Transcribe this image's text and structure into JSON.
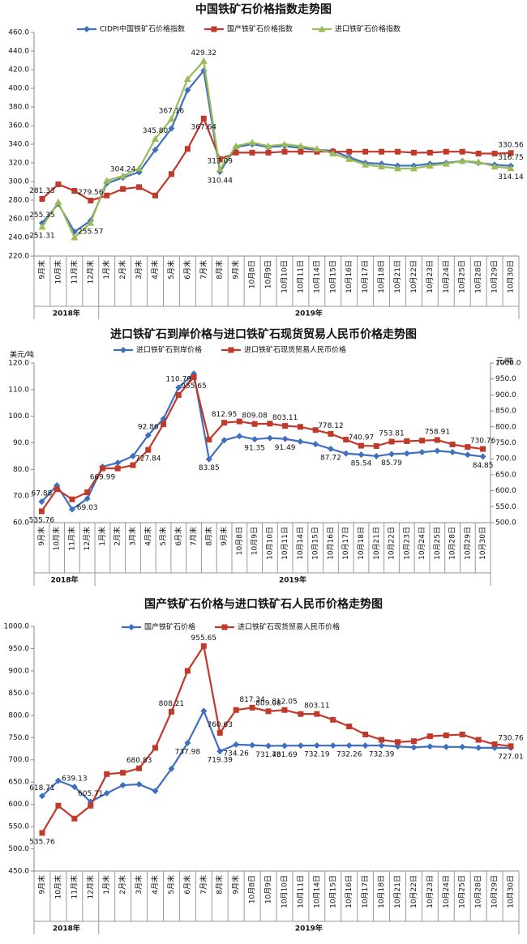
{
  "chart_data": [
    {
      "type": "line",
      "title": "中国铁矿石价格指数走势图",
      "categories": [
        "9月末",
        "10月末",
        "11月末",
        "12月末",
        "1月末",
        "2月末",
        "3月末",
        "4月末",
        "5月末",
        "6月末",
        "7月末",
        "8月末",
        "9月末",
        "10月8日",
        "10月9日",
        "10月10日",
        "10月11日",
        "10月14日",
        "10月15日",
        "10月16日",
        "10月17日",
        "10月18日",
        "10月21日",
        "10月22日",
        "10月23日",
        "10月24日",
        "10月25日",
        "10月28日",
        "10月29日",
        "10月30日"
      ],
      "category_years": [
        "2018年",
        "2018年",
        "2018年",
        "2018年",
        "2019年",
        "2019年",
        "2019年",
        "2019年",
        "2019年",
        "2019年",
        "2019年",
        "2019年",
        "2019年",
        "2019年",
        "2019年",
        "2019年",
        "2019年",
        "2019年",
        "2019年",
        "2019年",
        "2019年",
        "2019年",
        "2019年",
        "2019年",
        "2019年",
        "2019年",
        "2019年",
        "2019年",
        "2019年",
        "2019年"
      ],
      "ylim": [
        220,
        460
      ],
      "yticks": [
        {
          "value": 220,
          "label": "220.0"
        },
        {
          "value": 240,
          "label": "240.0"
        },
        {
          "value": 260,
          "label": "260.0"
        },
        {
          "value": 280,
          "label": "280.0"
        },
        {
          "value": 300,
          "label": "300.0"
        },
        {
          "value": 320,
          "label": "320.0"
        },
        {
          "value": 340,
          "label": "340.0"
        },
        {
          "value": 360,
          "label": "360.0"
        },
        {
          "value": 380,
          "label": "380.0"
        },
        {
          "value": 400,
          "label": "400.0"
        },
        {
          "value": 420,
          "label": "420.0"
        },
        {
          "value": 440,
          "label": "440.0"
        },
        {
          "value": 460,
          "label": "460.0"
        }
      ],
      "series": [
        {
          "name": "CIDPI中国铁矿石价格指数",
          "color": "#3f6fbf",
          "marker": "diamond",
          "values": [
            255.35,
            276,
            246,
            258,
            298,
            304.24,
            310,
            334,
            357,
            398,
            419,
            310.44,
            337,
            340,
            337,
            338,
            336,
            334,
            333,
            326,
            320,
            319,
            317,
            317,
            319,
            320,
            322,
            320,
            318,
            316.75
          ],
          "value_labels": [
            "255.35",
            null,
            null,
            null,
            null,
            "304.24",
            null,
            null,
            null,
            null,
            null,
            "310.44",
            null,
            null,
            null,
            null,
            null,
            null,
            null,
            null,
            null,
            null,
            null,
            null,
            null,
            null,
            null,
            null,
            null,
            "316.75"
          ]
        },
        {
          "name": "国产铁矿石价格指数",
          "color": "#c0392b",
          "marker": "square",
          "values": [
            281.33,
            297,
            290,
            279.56,
            285,
            292,
            294,
            285,
            308,
            335,
            367.64,
            324,
            331,
            331,
            331,
            332,
            332,
            332,
            332,
            332,
            332,
            332,
            332,
            331,
            331,
            332,
            332,
            330,
            330,
            330.56
          ],
          "value_labels": [
            "281.33",
            null,
            null,
            "279.56",
            null,
            null,
            null,
            null,
            null,
            null,
            "367.64",
            null,
            null,
            null,
            null,
            null,
            null,
            null,
            null,
            null,
            null,
            null,
            null,
            null,
            null,
            null,
            null,
            null,
            null,
            "330.56"
          ]
        },
        {
          "name": "进口铁矿石价格指数",
          "color": "#9bbb59",
          "marker": "triangle",
          "values": [
            251.31,
            278,
            240,
            255.57,
            301,
            306,
            314,
            345.8,
            367.16,
            410,
            429.32,
            313.09,
            338,
            342,
            338,
            340,
            338,
            335,
            330,
            324,
            318,
            316,
            314,
            314,
            317,
            319,
            322,
            321,
            316,
            314.14
          ],
          "value_labels": [
            "251.31",
            null,
            null,
            "255.57",
            null,
            null,
            null,
            "345.80",
            "367.16",
            null,
            "429.32",
            "313.09",
            null,
            null,
            null,
            null,
            null,
            null,
            null,
            null,
            null,
            null,
            null,
            null,
            null,
            null,
            null,
            null,
            null,
            "314.14"
          ]
        }
      ]
    },
    {
      "type": "line",
      "title": "进口铁矿石到岸价格与进口铁矿石现货贸易人民币价格走势图",
      "ylabel": "美元/吨",
      "y2label": "元/吨",
      "categories": [
        "9月末",
        "10月末",
        "11月末",
        "12月末",
        "1月末",
        "2月末",
        "3月末",
        "4月末",
        "5月末",
        "6月末",
        "7月末",
        "8月末",
        "9月末",
        "10月8日",
        "10月9日",
        "10月10日",
        "10月11日",
        "10月14日",
        "10月15日",
        "10月16日",
        "10月17日",
        "10月18日",
        "10月21日",
        "10月22日",
        "10月23日",
        "10月24日",
        "10月25日",
        "10月28日",
        "10月29日",
        "10月30日"
      ],
      "category_years": [
        "2018年",
        "2018年",
        "2018年",
        "2018年",
        "2019年",
        "2019年",
        "2019年",
        "2019年",
        "2019年",
        "2019年",
        "2019年",
        "2019年",
        "2019年",
        "2019年",
        "2019年",
        "2019年",
        "2019年",
        "2019年",
        "2019年",
        "2019年",
        "2019年",
        "2019年",
        "2019年",
        "2019年",
        "2019年",
        "2019年",
        "2019年",
        "2019年",
        "2019年",
        "2019年"
      ],
      "ylim": [
        60,
        120
      ],
      "yticks": [
        {
          "value": 60,
          "label": "60.0"
        },
        {
          "value": 70,
          "label": "70.0"
        },
        {
          "value": 80,
          "label": "80.0"
        },
        {
          "value": 90,
          "label": "90.0"
        },
        {
          "value": 100,
          "label": "100.0"
        },
        {
          "value": 110,
          "label": "110.0"
        },
        {
          "value": 120,
          "label": "120.0"
        }
      ],
      "y2lim": [
        500,
        1000
      ],
      "y2ticks": [
        {
          "value": 500,
          "label": "500.0"
        },
        {
          "value": 550,
          "label": "550.0"
        },
        {
          "value": 600,
          "label": "600.0"
        },
        {
          "value": 650,
          "label": "650.0"
        },
        {
          "value": 700,
          "label": "700.0"
        },
        {
          "value": 750,
          "label": "750.0"
        },
        {
          "value": 800,
          "label": "800.0"
        },
        {
          "value": 850,
          "label": "850.0"
        },
        {
          "value": 900,
          "label": "900.0"
        },
        {
          "value": 950,
          "label": "950.0"
        },
        {
          "value": 1000,
          "label": "1000.0"
        }
      ],
      "series": [
        {
          "name": "进口铁矿石到岸价格",
          "color": "#3f6fbf",
          "marker": "diamond",
          "values": [
            67.88,
            74,
            65,
            69.03,
            81,
            82.5,
            85,
            92.86,
            99,
            110.79,
            116,
            83.85,
            91,
            92.5,
            91.35,
            91.8,
            91.49,
            90.5,
            89.5,
            87.72,
            86,
            85.54,
            85,
            85.79,
            86,
            86.5,
            87,
            86.5,
            85.5,
            84.85
          ],
          "value_labels": [
            "67.88",
            null,
            null,
            "69.03",
            null,
            null,
            null,
            "92.86",
            null,
            "110.79",
            null,
            "83.85",
            null,
            null,
            "91.35",
            null,
            "91.49",
            null,
            null,
            "87.72",
            null,
            "85.54",
            null,
            "85.79",
            null,
            null,
            null,
            null,
            null,
            "84.85"
          ]
        },
        {
          "name": "进口铁矿石现货贸易人民币价格",
          "color": "#c0392b",
          "marker": "square",
          "axis": "y2",
          "values": [
            535.76,
            605,
            573,
            595,
            669.99,
            670,
            680,
            727.84,
            808,
            900,
            955.65,
            760,
            812.95,
            817,
            809.08,
            810,
            803.11,
            800,
            790,
            778.12,
            760,
            740.97,
            740,
            753.81,
            755,
            757,
            758.91,
            745,
            737,
            730.76
          ],
          "value_labels": [
            "535.76",
            null,
            null,
            null,
            "669.99",
            null,
            null,
            "727.84",
            null,
            null,
            "955.65",
            null,
            "812.95",
            null,
            "809.08",
            null,
            "803.11",
            null,
            null,
            "778.12",
            null,
            "740.97",
            null,
            "753.81",
            null,
            null,
            "758.91",
            null,
            null,
            "730.76"
          ]
        }
      ]
    },
    {
      "type": "line",
      "title": "国产铁矿石价格与进口铁矿石人民币价格走势图",
      "categories": [
        "9月末",
        "10月末",
        "11月末",
        "12月末",
        "1月末",
        "2月末",
        "3月末",
        "4月末",
        "5月末",
        "6月末",
        "7月末",
        "8月末",
        "9月末",
        "10月8日",
        "10月9日",
        "10月10日",
        "10月11日",
        "10月14日",
        "10月15日",
        "10月16日",
        "10月17日",
        "10月18日",
        "10月21日",
        "10月22日",
        "10月23日",
        "10月24日",
        "10月25日",
        "10月28日",
        "10月29日",
        "10月30日"
      ],
      "category_years": [
        "2018年",
        "2018年",
        "2018年",
        "2018年",
        "2019年",
        "2019年",
        "2019年",
        "2019年",
        "2019年",
        "2019年",
        "2019年",
        "2019年",
        "2019年",
        "2019年",
        "2019年",
        "2019年",
        "2019年",
        "2019年",
        "2019年",
        "2019年",
        "2019年",
        "2019年",
        "2019年",
        "2019年",
        "2019年",
        "2019年",
        "2019年",
        "2019年",
        "2019年",
        "2019年"
      ],
      "ylim": [
        450,
        1000
      ],
      "yticks": [
        {
          "value": 450,
          "label": "450.0"
        },
        {
          "value": 500,
          "label": "500.0"
        },
        {
          "value": 550,
          "label": "550.0"
        },
        {
          "value": 600,
          "label": "600.0"
        },
        {
          "value": 650,
          "label": "650.0"
        },
        {
          "value": 700,
          "label": "700.0"
        },
        {
          "value": 750,
          "label": "750.0"
        },
        {
          "value": 800,
          "label": "800.0"
        },
        {
          "value": 850,
          "label": "850.0"
        },
        {
          "value": 900,
          "label": "900.0"
        },
        {
          "value": 950,
          "label": "950.0"
        },
        {
          "value": 1000,
          "label": "1000.0"
        }
      ],
      "series": [
        {
          "name": "国产铁矿石价格",
          "color": "#3f6fbf",
          "marker": "diamond",
          "values": [
            618.71,
            653,
            639.13,
            605.71,
            625,
            643,
            645,
            630,
            680,
            737.98,
            810,
            719.39,
            734.26,
            733,
            731.46,
            731.69,
            732,
            732.19,
            732,
            732.26,
            732,
            732.39,
            730,
            728,
            730,
            729,
            729,
            727,
            727,
            727.01
          ],
          "value_labels": [
            "618.71",
            null,
            "639.13",
            "605.71",
            null,
            null,
            null,
            null,
            null,
            "737.98",
            null,
            "719.39",
            "734.26",
            null,
            "731.46",
            "731.69",
            null,
            "732.19",
            null,
            "732.26",
            null,
            "732.39",
            null,
            null,
            null,
            null,
            null,
            null,
            null,
            "727.01"
          ]
        },
        {
          "name": "进口铁矿石现货贸易人民币价格",
          "color": "#c0392b",
          "marker": "square",
          "values": [
            535.76,
            597,
            568,
            597,
            668,
            671,
            680.83,
            727,
            808.21,
            900,
            955.65,
            760.63,
            812,
            817.34,
            809.08,
            812.05,
            803,
            803.11,
            790,
            775,
            757,
            745,
            740,
            742,
            753,
            755,
            757,
            745,
            735,
            730.76
          ],
          "value_labels": [
            "535.76",
            null,
            null,
            null,
            null,
            null,
            "680.83",
            null,
            "808.21",
            null,
            "955.65",
            "760.63",
            null,
            "817.34",
            "809.08",
            "812.05",
            null,
            "803.11",
            null,
            null,
            null,
            null,
            null,
            null,
            null,
            null,
            null,
            null,
            null,
            "730.76"
          ]
        }
      ]
    }
  ]
}
